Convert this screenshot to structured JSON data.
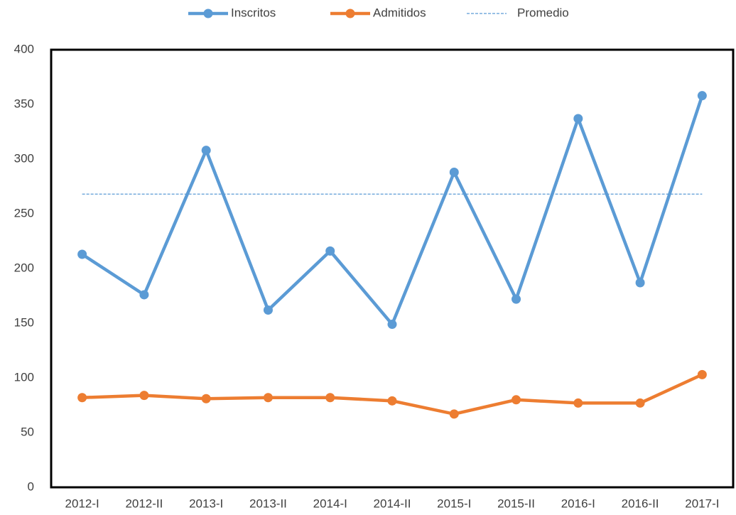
{
  "chart_data": {
    "type": "line",
    "categories": [
      "2012-I",
      "2012-II",
      "2013-I",
      "2013-II",
      "2014-I",
      "2014-II",
      "2015-I",
      "2015-II",
      "2016-I",
      "2016-II",
      "2017-I"
    ],
    "series": [
      {
        "name": "Inscritos",
        "color": "#5b9bd5",
        "marker": true,
        "dashed": false,
        "values": [
          213,
          176,
          308,
          162,
          216,
          149,
          288,
          172,
          337,
          187,
          358
        ]
      },
      {
        "name": "Admitidos",
        "color": "#ed7d31",
        "marker": true,
        "dashed": false,
        "values": [
          82,
          84,
          81,
          82,
          82,
          79,
          67,
          80,
          77,
          77,
          103
        ]
      },
      {
        "name": "Promedio",
        "color": "#5b9bd5",
        "marker": false,
        "dashed": true,
        "values": [
          268,
          268,
          268,
          268,
          268,
          268,
          268,
          268,
          268,
          268,
          268
        ]
      }
    ],
    "ylim": [
      0,
      400
    ],
    "yticks": [
      0,
      50,
      100,
      150,
      200,
      250,
      300,
      350,
      400
    ],
    "grid": false,
    "legend": "top"
  }
}
